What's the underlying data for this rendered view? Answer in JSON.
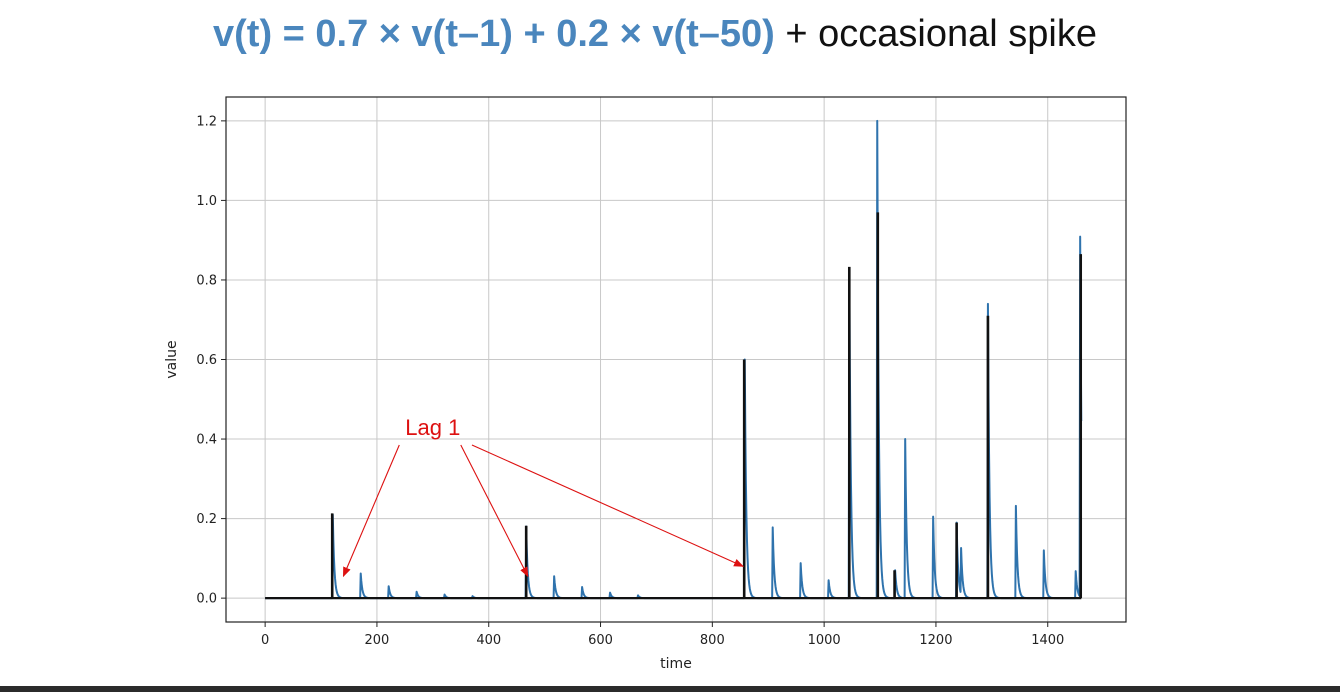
{
  "title": {
    "equation": "v(t) = 0.7 × v(t–1) + 0.2 × v(t–50)",
    "suffix": "+ occasional spike",
    "equation_color": "#4a86bd"
  },
  "chart_data": {
    "type": "line",
    "xlabel": "time",
    "ylabel": "value",
    "xlim": [
      -70,
      1540
    ],
    "ylim": [
      -0.06,
      1.26
    ],
    "xticks": [
      0,
      200,
      400,
      600,
      800,
      1000,
      1200,
      1400
    ],
    "yticks": [
      0.0,
      0.2,
      0.4,
      0.6,
      0.8,
      1.0,
      1.2
    ],
    "xtick_labels": [
      "0",
      "200",
      "400",
      "600",
      "800",
      "1000",
      "1200",
      "1400"
    ],
    "ytick_labels": [
      "0.0",
      "0.2",
      "0.4",
      "0.6",
      "0.8",
      "1.0",
      "1.2"
    ],
    "grid": true,
    "series": [
      {
        "color": "#2f73ad",
        "x_range": [
          0,
          1460
        ],
        "pulses": [
          {
            "t": 121,
            "v": 0.21
          },
          {
            "t": 171,
            "v": 0.062
          },
          {
            "t": 221,
            "v": 0.03
          },
          {
            "t": 271,
            "v": 0.016
          },
          {
            "t": 321,
            "v": 0.009
          },
          {
            "t": 371,
            "v": 0.005
          },
          {
            "t": 467,
            "v": 0.18
          },
          {
            "t": 517,
            "v": 0.055
          },
          {
            "t": 567,
            "v": 0.028
          },
          {
            "t": 617,
            "v": 0.014
          },
          {
            "t": 667,
            "v": 0.007
          },
          {
            "t": 858,
            "v": 0.6
          },
          {
            "t": 908,
            "v": 0.178
          },
          {
            "t": 958,
            "v": 0.088
          },
          {
            "t": 1008,
            "v": 0.045
          },
          {
            "t": 1045,
            "v": 0.83
          },
          {
            "t": 1095,
            "v": 1.2
          },
          {
            "t": 1127,
            "v": 0.07
          },
          {
            "t": 1145,
            "v": 0.4
          },
          {
            "t": 1195,
            "v": 0.205
          },
          {
            "t": 1237,
            "v": 0.19
          },
          {
            "t": 1245,
            "v": 0.115
          },
          {
            "t": 1293,
            "v": 0.74
          },
          {
            "t": 1343,
            "v": 0.232
          },
          {
            "t": 1393,
            "v": 0.12
          },
          {
            "t": 1450,
            "v": 0.068
          },
          {
            "t": 1458,
            "v": 0.905
          }
        ]
      },
      {
        "color": "#111111",
        "x_range": [
          0,
          1460
        ],
        "spikes": [
          {
            "t": 120,
            "v": 0.213
          },
          {
            "t": 467,
            "v": 0.182
          },
          {
            "t": 857,
            "v": 0.6
          },
          {
            "t": 1045,
            "v": 0.833
          },
          {
            "t": 1096,
            "v": 0.97
          },
          {
            "t": 1126,
            "v": 0.07
          },
          {
            "t": 1237,
            "v": 0.19
          },
          {
            "t": 1293,
            "v": 0.71
          },
          {
            "t": 1459,
            "v": 0.865
          }
        ]
      }
    ],
    "annotations": [
      {
        "text": "Lag 1",
        "color": "#dd1111",
        "text_at": [
          300,
          0.41
        ],
        "arrows": [
          {
            "from": [
              240,
              0.385
            ],
            "to": [
              140,
              0.055
            ]
          },
          {
            "from": [
              350,
              0.385
            ],
            "to": [
              470,
              0.055
            ]
          },
          {
            "from": [
              370,
              0.385
            ],
            "to": [
              855,
              0.08
            ]
          }
        ]
      }
    ]
  }
}
